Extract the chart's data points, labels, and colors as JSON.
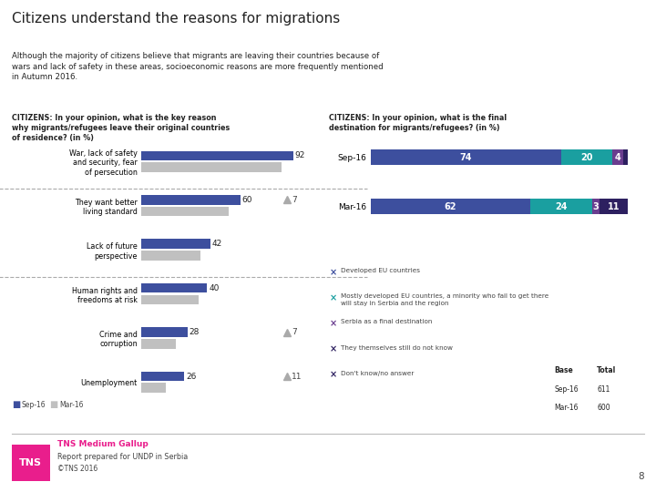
{
  "title": "Citizens understand the reasons for migrations",
  "subtitle": "Although the majority of citizens believe that migrants are leaving their countries because of\nwars and lack of safety in these areas, socioeconomic reasons are more frequently mentioned\nin Autumn 2016.",
  "left_question": "CITIZENS: In your opinion, what is the key reason\nwhy migrants/refugees leave their original countries\nof residence? (in %)",
  "right_question": "CITIZENS: In your opinion, what is the final\ndestination for migrants/refugees? (in %)",
  "left_categories": [
    "War, lack of safety\nand security, fear\nof persecution",
    "They want better\nliving standard",
    "Lack of future\nperspective",
    "Human rights and\nfreedoms at risk",
    "Crime and\ncorruption",
    "Unemployment"
  ],
  "sep16_values": [
    92,
    60,
    42,
    40,
    28,
    26
  ],
  "mar16_values": [
    85,
    53,
    36,
    35,
    21,
    15
  ],
  "triangle_show": [
    false,
    true,
    false,
    false,
    true,
    true
  ],
  "triangle_values": [
    null,
    7,
    null,
    null,
    7,
    11
  ],
  "right_rows": [
    {
      "label": "Sep-16",
      "segments": [
        74,
        20,
        4,
        2
      ]
    },
    {
      "label": "Mar-16",
      "segments": [
        62,
        24,
        3,
        11
      ]
    }
  ],
  "right_seg_colors": [
    "#3d4f9e",
    "#1a9fa0",
    "#6a3d8f",
    "#2d2060"
  ],
  "bar_color_sep16": "#3d4f9e",
  "bar_color_mar16": "#c0c0c0",
  "legend_items_right": [
    {
      "color": "#3d4f9e",
      "text": "Developed EU countries"
    },
    {
      "color": "#1a9fa0",
      "text": "Mostly developed EU countries, a minority who fail to get there\nwill stay in Serbia and the region"
    },
    {
      "color": "#6a3d8f",
      "text": "Serbia as a final destination"
    },
    {
      "color": "#2d2060",
      "text": "They themselves still do not know"
    },
    {
      "color": "#2d2060",
      "text": "Don't know/no answer"
    }
  ],
  "base_table_rows": [
    [
      "Sep-16",
      "611"
    ],
    [
      "Mar-16",
      "600"
    ]
  ],
  "footer_logo_color": "#e91e8c",
  "page_number": "8",
  "bg_color": "#ffffff",
  "text_color_dark": "#222222",
  "text_color_mid": "#444444",
  "dashed_color": "#aaaaaa",
  "triangle_color": "#aaaaaa"
}
